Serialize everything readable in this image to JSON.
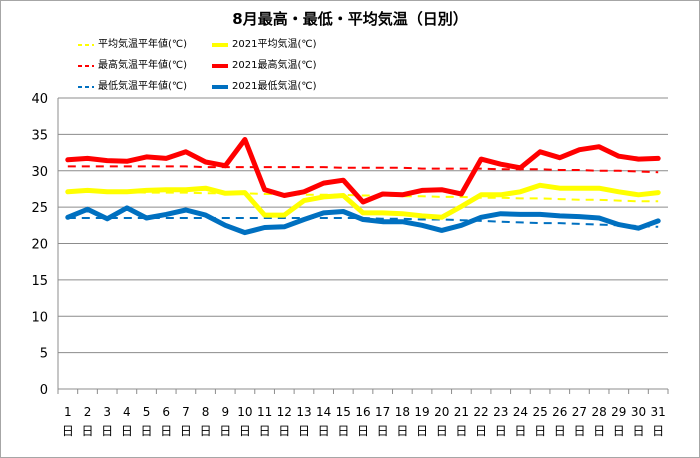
{
  "chart_data": {
    "type": "line",
    "title": "8月最高・最低・平均気温（日別）",
    "xlabel": "",
    "ylabel": "",
    "ylim": [
      0,
      40
    ],
    "yticks": [
      0,
      5,
      10,
      15,
      20,
      25,
      30,
      35,
      40
    ],
    "grid": "horizontal",
    "legend": "top-left",
    "categories": [
      "1",
      "2",
      "3",
      "4",
      "5",
      "6",
      "7",
      "8",
      "9",
      "10",
      "11",
      "12",
      "13",
      "14",
      "15",
      "16",
      "17",
      "18",
      "19",
      "20",
      "21",
      "22",
      "23",
      "24",
      "25",
      "26",
      "27",
      "28",
      "29",
      "30",
      "31"
    ],
    "category_suffix": "日",
    "series": [
      {
        "name": "平均気温平年値(℃)",
        "color": "#ffff00",
        "dashed": true,
        "values": [
          27.1,
          27.1,
          27.1,
          27.1,
          27.0,
          27.0,
          27.0,
          26.9,
          26.9,
          26.9,
          26.8,
          26.8,
          26.7,
          26.7,
          26.7,
          26.6,
          26.6,
          26.5,
          26.5,
          26.4,
          26.4,
          26.3,
          26.3,
          26.2,
          26.2,
          26.1,
          26.0,
          26.0,
          25.9,
          25.8,
          25.8
        ]
      },
      {
        "name": "2021平均気温(℃)",
        "color": "#ffff00",
        "dashed": false,
        "values": [
          27.1,
          27.3,
          27.1,
          27.1,
          27.3,
          27.4,
          27.4,
          27.6,
          26.9,
          27.0,
          23.9,
          23.9,
          25.9,
          26.4,
          26.6,
          24.2,
          24.2,
          24.1,
          23.8,
          23.6,
          25.1,
          26.7,
          26.7,
          27.1,
          28.0,
          27.6,
          27.6,
          27.6,
          27.1,
          26.7,
          27.0
        ]
      },
      {
        "name": "最高気温平年値(℃)",
        "color": "#ff0000",
        "dashed": true,
        "values": [
          30.6,
          30.6,
          30.6,
          30.6,
          30.6,
          30.6,
          30.6,
          30.5,
          30.5,
          30.5,
          30.5,
          30.5,
          30.5,
          30.5,
          30.4,
          30.4,
          30.4,
          30.4,
          30.3,
          30.3,
          30.3,
          30.3,
          30.2,
          30.2,
          30.2,
          30.1,
          30.1,
          30.0,
          30.0,
          29.9,
          29.8
        ]
      },
      {
        "name": "2021最高気温(℃)",
        "color": "#ff0000",
        "dashed": false,
        "values": [
          31.5,
          31.7,
          31.4,
          31.3,
          31.9,
          31.7,
          32.6,
          31.2,
          30.7,
          34.3,
          27.4,
          26.6,
          27.1,
          28.3,
          28.7,
          25.7,
          26.8,
          26.7,
          27.3,
          27.4,
          26.8,
          31.6,
          30.9,
          30.4,
          32.6,
          31.8,
          32.9,
          33.3,
          32.0,
          31.6,
          31.7
        ]
      },
      {
        "name": "最低気温平年値(℃)",
        "color": "#0070c0",
        "dashed": true,
        "values": [
          23.5,
          23.5,
          23.5,
          23.5,
          23.5,
          23.5,
          23.5,
          23.5,
          23.5,
          23.5,
          23.5,
          23.5,
          23.5,
          23.5,
          23.5,
          23.5,
          23.4,
          23.4,
          23.3,
          23.3,
          23.2,
          23.1,
          23.0,
          22.9,
          22.8,
          22.8,
          22.7,
          22.6,
          22.5,
          22.4,
          22.3
        ]
      },
      {
        "name": "2021最低気温(℃)",
        "color": "#0070c0",
        "dashed": false,
        "values": [
          23.6,
          24.7,
          23.4,
          24.9,
          23.5,
          24.0,
          24.6,
          23.9,
          22.5,
          21.5,
          22.2,
          22.3,
          23.3,
          24.2,
          24.4,
          23.3,
          23.0,
          23.0,
          22.5,
          21.8,
          22.5,
          23.6,
          24.1,
          24.0,
          24.0,
          23.8,
          23.7,
          23.5,
          22.6,
          22.1,
          23.1
        ]
      }
    ]
  }
}
